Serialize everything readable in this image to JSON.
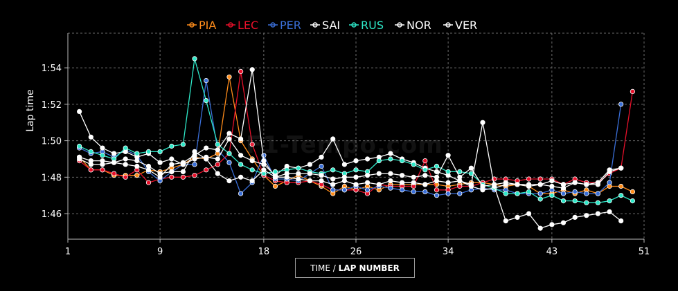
{
  "chart_data": {
    "type": "line",
    "ylabel": "Lap time",
    "xlabel_prefix": "TIME /",
    "xlabel_bold": "LAP NUMBER",
    "watermark": "F1-Tempo.com",
    "xlim": [
      1,
      51
    ],
    "ylim": [
      104.6,
      115.9
    ],
    "x_ticks": [
      1,
      9,
      18,
      26,
      34,
      43,
      51
    ],
    "x_tick_labels": [
      "1",
      "9",
      "18",
      "26",
      "34",
      "43",
      "51"
    ],
    "y_ticks": [
      106,
      108,
      110,
      112,
      114
    ],
    "y_tick_labels": [
      "1:46",
      "1:48",
      "1:50",
      "1:52",
      "1:54"
    ],
    "grid": true,
    "legend_position": "top-center",
    "series": [
      {
        "name": "PIA",
        "color": "#ff8c1a",
        "x": [
          2,
          3,
          4,
          5,
          6,
          7,
          8,
          9,
          10,
          11,
          12,
          13,
          14,
          15,
          16,
          17,
          18,
          19,
          20,
          21,
          22,
          23,
          24,
          25,
          26,
          27,
          28,
          29,
          30,
          31,
          32,
          33,
          34,
          35,
          36,
          37,
          38,
          39,
          40,
          41,
          42,
          43,
          44,
          45,
          46,
          47,
          48,
          49,
          50
        ],
        "y": [
          109.1,
          108.4,
          108.4,
          108.1,
          108.1,
          108.1,
          108.4,
          108.3,
          108.5,
          108.7,
          109.1,
          109.0,
          109.3,
          113.5,
          110.0,
          109.0,
          108.1,
          107.5,
          107.8,
          108.1,
          107.8,
          107.5,
          107.1,
          107.5,
          107.3,
          107.5,
          107.3,
          107.6,
          107.6,
          107.6,
          107.6,
          107.6,
          107.5,
          107.6,
          107.7,
          107.7,
          107.6,
          107.5,
          107.6,
          107.5,
          107.1,
          107.1,
          107.3,
          107.1,
          107.3,
          107.1,
          107.5,
          107.5,
          107.2
        ]
      },
      {
        "name": "LEC",
        "color": "#e8102a",
        "x": [
          2,
          3,
          4,
          5,
          6,
          7,
          8,
          9,
          10,
          11,
          12,
          13,
          14,
          15,
          16,
          17,
          18,
          19,
          20,
          21,
          22,
          23,
          24,
          25,
          26,
          27,
          28,
          29,
          30,
          31,
          32,
          33,
          34,
          35,
          36,
          37,
          38,
          39,
          40,
          41,
          42,
          43,
          44,
          45,
          46,
          47,
          48,
          49,
          50
        ],
        "y": [
          108.9,
          108.4,
          108.4,
          108.2,
          108.0,
          108.4,
          107.7,
          107.9,
          108.0,
          108.0,
          108.1,
          108.4,
          108.7,
          109.3,
          113.8,
          109.8,
          108.1,
          107.8,
          107.7,
          107.7,
          107.8,
          107.6,
          107.3,
          107.3,
          107.3,
          107.1,
          107.6,
          107.5,
          107.5,
          107.5,
          108.9,
          107.3,
          107.3,
          107.5,
          107.5,
          107.7,
          107.9,
          107.9,
          107.8,
          107.9,
          107.9,
          107.9,
          107.6,
          107.9,
          107.7,
          107.7,
          108.2,
          108.5,
          112.7
        ]
      },
      {
        "name": "PER",
        "color": "#3a6fd8",
        "x": [
          2,
          3,
          4,
          5,
          6,
          7,
          8,
          9,
          10,
          11,
          12,
          13,
          14,
          15,
          16,
          17,
          18,
          19,
          20,
          21,
          22,
          23,
          24,
          25,
          26,
          27,
          28,
          29,
          30,
          31,
          32,
          33,
          34,
          35,
          36,
          37,
          38,
          39,
          40,
          41,
          42,
          43,
          44,
          45,
          46,
          47,
          48,
          49
        ],
        "y": [
          109.6,
          109.3,
          109.4,
          109.1,
          109.5,
          109.2,
          108.3,
          107.8,
          108.3,
          108.7,
          108.7,
          113.3,
          109.5,
          108.8,
          107.1,
          107.7,
          109.2,
          107.9,
          107.9,
          107.8,
          108.2,
          108.6,
          107.3,
          107.3,
          107.5,
          107.3,
          107.5,
          107.4,
          107.3,
          107.2,
          107.2,
          107.0,
          107.1,
          107.1,
          107.3,
          107.4,
          107.3,
          107.3,
          107.1,
          107.1,
          107.1,
          107.3,
          107.1,
          107.2,
          107.1,
          107.1,
          107.7,
          112.0
        ]
      },
      {
        "name": "SAI",
        "color": "#ffffff",
        "x": [
          2,
          3,
          4,
          5,
          6,
          7,
          8,
          9,
          10,
          11,
          12,
          13,
          14,
          15,
          16,
          17,
          18,
          19,
          20,
          21,
          22,
          23,
          24,
          25,
          26,
          27,
          28,
          29,
          30,
          31,
          32,
          33,
          34,
          35,
          36,
          37,
          38,
          39,
          40,
          41,
          42,
          43,
          44,
          45,
          46,
          47,
          48,
          49
        ],
        "y": [
          111.6,
          110.2,
          109.6,
          109.3,
          109.4,
          109.1,
          109.3,
          108.8,
          109.0,
          108.7,
          109.0,
          109.1,
          109.0,
          110.1,
          109.2,
          108.9,
          108.7,
          108.1,
          108.6,
          108.5,
          108.7,
          109.1,
          110.1,
          108.7,
          108.9,
          109.0,
          109.1,
          109.3,
          109.0,
          108.8,
          108.5,
          108.3,
          108.1,
          107.8,
          107.5,
          107.3,
          107.4,
          107.6,
          107.6,
          107.5,
          107.6,
          107.5,
          107.4,
          107.7,
          107.6,
          107.6,
          108.3,
          108.5
        ]
      },
      {
        "name": "RUS",
        "color": "#2ee8c8",
        "x": [
          2,
          3,
          4,
          5,
          6,
          7,
          8,
          9,
          10,
          11,
          12,
          13,
          14,
          15,
          16,
          17,
          18,
          19,
          20,
          21,
          22,
          23,
          24,
          25,
          26,
          27,
          28,
          29,
          30,
          31,
          32,
          33,
          34,
          35,
          36,
          37,
          38,
          39,
          40,
          41,
          42,
          43,
          44,
          45,
          46,
          47,
          48,
          49,
          50
        ],
        "y": [
          109.7,
          109.4,
          109.2,
          109.0,
          109.6,
          109.3,
          109.4,
          109.4,
          109.7,
          109.8,
          114.5,
          112.2,
          109.8,
          109.3,
          108.7,
          108.4,
          108.2,
          108.3,
          108.4,
          108.5,
          108.3,
          108.2,
          108.4,
          108.2,
          108.4,
          108.3,
          108.9,
          109.0,
          108.9,
          108.7,
          108.4,
          108.6,
          108.3,
          108.3,
          108.2,
          107.6,
          107.4,
          107.1,
          107.1,
          107.2,
          106.8,
          107.0,
          106.7,
          106.7,
          106.6,
          106.6,
          106.7,
          107.0,
          106.7
        ]
      },
      {
        "name": "NOR",
        "color": "#ffffff",
        "x": [
          2,
          3,
          4,
          5,
          6,
          7,
          8,
          9,
          10,
          11,
          12,
          13,
          14,
          15,
          16,
          17,
          18,
          19,
          20,
          21,
          22,
          23,
          24,
          25,
          26,
          27,
          28,
          29,
          30,
          31,
          32,
          33,
          34,
          35,
          36,
          37,
          38,
          39,
          40,
          41,
          42,
          43,
          44,
          45,
          46,
          47,
          48,
          49
        ],
        "y": [
          109.0,
          108.7,
          108.7,
          108.8,
          109.0,
          108.9,
          108.6,
          108.2,
          108.3,
          108.3,
          109.4,
          109.0,
          108.2,
          107.8,
          108.0,
          107.8,
          108.4,
          108.0,
          108.0,
          107.9,
          107.8,
          107.8,
          107.6,
          107.8,
          107.6,
          107.7,
          107.6,
          107.8,
          107.7,
          107.7,
          107.6,
          107.8,
          107.7,
          107.8,
          107.6,
          111.0,
          107.5,
          105.6,
          105.8,
          106.0,
          105.2,
          105.4,
          105.5,
          105.8,
          105.9,
          106.0,
          106.1,
          105.6
        ]
      },
      {
        "name": "VER",
        "color": "#ffffff",
        "x": [
          2,
          3,
          4,
          5,
          6,
          7,
          8,
          9,
          10,
          11,
          12,
          13,
          14,
          15,
          16,
          17,
          18,
          19,
          20,
          21,
          22,
          23,
          24,
          25,
          26,
          27,
          28,
          29,
          30,
          31,
          32,
          33,
          34,
          35,
          36,
          37,
          38,
          39,
          40,
          41,
          42,
          43,
          44,
          45,
          46,
          47,
          48,
          49
        ],
        "y": [
          109.1,
          108.9,
          108.9,
          108.8,
          108.7,
          108.6,
          108.4,
          108.0,
          108.7,
          108.8,
          109.2,
          109.6,
          109.5,
          110.4,
          110.1,
          113.9,
          108.9,
          108.0,
          108.2,
          108.2,
          108.2,
          108.1,
          107.9,
          108.0,
          108.0,
          108.1,
          108.2,
          108.2,
          108.1,
          108.0,
          108.1,
          108.0,
          109.2,
          108.0,
          108.5,
          107.5,
          107.6,
          107.7,
          107.6,
          107.6,
          107.6,
          107.8,
          107.6,
          107.7,
          107.6,
          107.7,
          108.4,
          108.5
        ]
      }
    ]
  }
}
